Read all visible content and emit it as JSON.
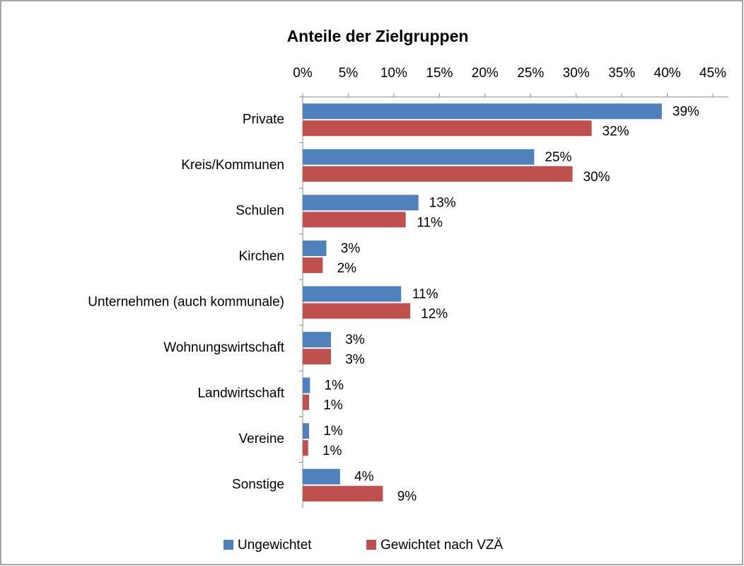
{
  "chart_data": {
    "type": "hbar",
    "title": "Anteile der Zielgruppen",
    "categories": [
      "Private",
      "Kreis/Kommunen",
      "Schulen",
      "Kirchen",
      "Unternehmen (auch kommunale)",
      "Wohnungswirtschaft",
      "Landwirtschaft",
      "Vereine",
      "Sonstige"
    ],
    "series": [
      {
        "name": "Ungewichtet",
        "color": "#4f81bd",
        "values": [
          39.4,
          25.4,
          12.7,
          2.6,
          10.8,
          3.1,
          0.8,
          0.7,
          4.1
        ],
        "value_labels": [
          "39%",
          "25%",
          "13%",
          "3%",
          "11%",
          "3%",
          "1%",
          "1%",
          "4%"
        ]
      },
      {
        "name": "Gewichtet nach VZÄ",
        "color": "#c0504d",
        "values": [
          31.7,
          29.6,
          11.3,
          2.2,
          11.8,
          3.1,
          0.7,
          0.6,
          8.8
        ],
        "value_labels": [
          "32%",
          "30%",
          "11%",
          "2%",
          "12%",
          "3%",
          "1%",
          "1%",
          "9%"
        ]
      }
    ],
    "xlim": [
      0,
      45
    ],
    "xticks": [
      {
        "value": 0,
        "label": "0%"
      },
      {
        "value": 5,
        "label": "5%"
      },
      {
        "value": 10,
        "label": "10%"
      },
      {
        "value": 15,
        "label": "15%"
      },
      {
        "value": 20,
        "label": "20%"
      },
      {
        "value": 25,
        "label": "25%"
      },
      {
        "value": 30,
        "label": "30%"
      },
      {
        "value": 35,
        "label": "35%"
      },
      {
        "value": 40,
        "label": "40%"
      },
      {
        "value": 45,
        "label": "45%"
      }
    ],
    "legend": "bottom"
  }
}
